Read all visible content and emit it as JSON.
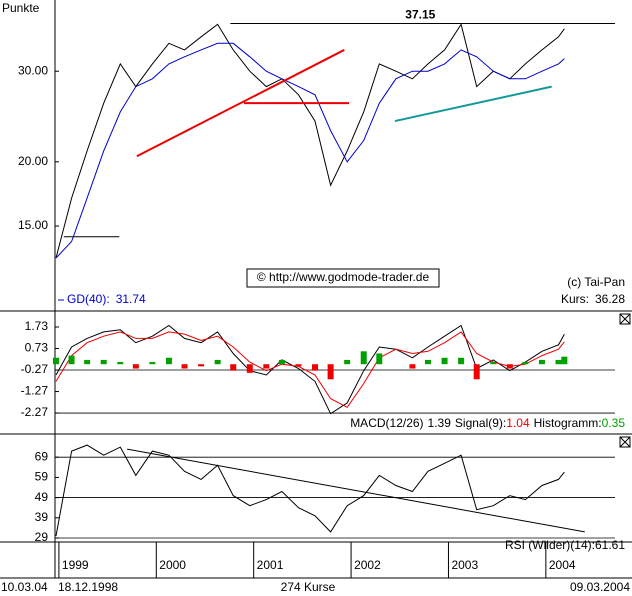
{
  "chart_data": [
    {
      "type": "line",
      "title": "Punkte",
      "log_scale": true,
      "xlim": [
        1998.96,
        2004.71
      ],
      "ylim": [
        10.3,
        40.9
      ],
      "yticks": [
        {
          "value": 15,
          "label": "15.00"
        },
        {
          "value": 20,
          "label": "20.00"
        },
        {
          "value": 30,
          "label": "30.00"
        }
      ],
      "x": [
        1998.97,
        1999.13,
        1999.29,
        1999.46,
        1999.63,
        1999.79,
        1999.96,
        2000.13,
        2000.29,
        2000.46,
        2000.63,
        2000.79,
        2000.96,
        2001.13,
        2001.29,
        2001.46,
        2001.63,
        2001.79,
        2001.96,
        2002.13,
        2002.29,
        2002.46,
        2002.63,
        2002.79,
        2002.96,
        2003.13,
        2003.29,
        2003.46,
        2003.63,
        2003.79,
        2003.96,
        2004.13,
        2004.19
      ],
      "series": [
        {
          "name": "Kurs:",
          "color": "#000000",
          "values": [
            13,
            17,
            21,
            26,
            31,
            28,
            31,
            34,
            33,
            35,
            37,
            33,
            30,
            28,
            29,
            27,
            24,
            18,
            21,
            25,
            31,
            30,
            29,
            31,
            33,
            37,
            28,
            30,
            29,
            31,
            33,
            35,
            36.28
          ]
        },
        {
          "name": "GD(40):",
          "color": "#0000cc",
          "values": [
            13,
            14,
            17,
            21,
            25,
            28,
            29,
            31,
            32,
            33,
            34,
            34,
            32,
            30,
            29,
            28,
            27,
            23,
            20,
            22,
            26,
            29,
            30,
            30,
            31,
            33,
            32,
            30,
            29,
            29,
            30,
            31,
            31.74
          ]
        }
      ],
      "trendlines": [
        {
          "x": [
            1999.8,
            2001.93
          ],
          "y": [
            20.5,
            33
          ],
          "color": "#ee0000"
        },
        {
          "x": [
            2000.9,
            2001.98
          ],
          "y": [
            26,
            26
          ],
          "color": "#ee0000"
        },
        {
          "x": [
            2000.76,
            2004.71
          ],
          "y": [
            37.15,
            37.15
          ],
          "color": "#000000"
        },
        {
          "x": [
            2002.45,
            2004.06
          ],
          "y": [
            24,
            28
          ],
          "color": "#119999"
        },
        {
          "x": [
            1999.05,
            1999.62
          ],
          "y": [
            14.3,
            14.3
          ],
          "color": "#000000"
        }
      ],
      "annotations": [
        "(c) Tai-Pan",
        "© http://www.godmode-trader.de"
      ]
    },
    {
      "type": "line",
      "xlim": [
        1998.96,
        2004.71
      ],
      "ylim": [
        -3.15,
        2.38
      ],
      "yticks": [
        1.73,
        0.73,
        -0.27,
        -1.27,
        -2.27
      ],
      "hlines": [
        -0.27,
        -2.27
      ],
      "x": [
        1998.97,
        1999.13,
        1999.29,
        1999.46,
        1999.63,
        1999.79,
        1999.96,
        2000.13,
        2000.29,
        2000.46,
        2000.63,
        2000.79,
        2000.96,
        2001.13,
        2001.29,
        2001.46,
        2001.63,
        2001.79,
        2001.96,
        2002.13,
        2002.29,
        2002.46,
        2002.63,
        2002.79,
        2002.96,
        2003.13,
        2003.29,
        2003.46,
        2003.63,
        2003.79,
        2003.96,
        2004.13,
        2004.19
      ],
      "series": [
        {
          "name": "MACD(12/26)",
          "color": "#000000",
          "values": [
            -0.5,
            0.8,
            1.2,
            1.5,
            1.6,
            1.0,
            1.3,
            1.8,
            1.2,
            1.0,
            1.5,
            0.5,
            -0.3,
            -0.5,
            0.2,
            -0.2,
            -0.8,
            -2.3,
            -1.8,
            -0.3,
            0.8,
            0.7,
            0.3,
            0.8,
            1.3,
            1.8,
            -0.2,
            0.2,
            -0.3,
            0.1,
            0.6,
            0.9,
            1.39
          ]
        },
        {
          "name": "Signal(9):",
          "color": "#ee0000",
          "values": [
            -0.8,
            0.4,
            1.0,
            1.3,
            1.5,
            1.2,
            1.2,
            1.5,
            1.4,
            1.1,
            1.3,
            0.8,
            0.1,
            -0.3,
            0.0,
            -0.1,
            -0.5,
            -1.6,
            -2.0,
            -0.9,
            0.3,
            0.7,
            0.5,
            0.6,
            1.0,
            1.5,
            0.5,
            0.1,
            -0.1,
            0.0,
            0.4,
            0.7,
            1.04
          ]
        },
        {
          "name": "Histogramm:",
          "type": "bar",
          "color": "#00a000",
          "color_down": "#ee0000",
          "values": [
            0.3,
            0.4,
            0.2,
            0.2,
            0.1,
            -0.2,
            0.1,
            0.3,
            -0.2,
            -0.1,
            0.2,
            -0.3,
            -0.4,
            -0.2,
            0.2,
            -0.1,
            -0.3,
            -0.7,
            0.2,
            0.6,
            0.5,
            0.0,
            -0.2,
            0.2,
            0.3,
            0.3,
            -0.7,
            0.1,
            -0.2,
            0.1,
            0.2,
            0.2,
            0.35
          ]
        }
      ]
    },
    {
      "type": "line",
      "xlim": [
        1998.96,
        2004.71
      ],
      "ylim": [
        27.5,
        79.5
      ],
      "yticks": [
        69,
        59,
        49,
        39,
        29
      ],
      "hlines": [
        69,
        49,
        29
      ],
      "xticks": [
        1999,
        2000,
        2001,
        2002,
        2003,
        2004
      ],
      "x": [
        1998.97,
        1999.13,
        1999.29,
        1999.46,
        1999.63,
        1999.79,
        1999.96,
        2000.13,
        2000.29,
        2000.46,
        2000.63,
        2000.79,
        2000.96,
        2001.13,
        2001.29,
        2001.46,
        2001.63,
        2001.79,
        2001.96,
        2002.13,
        2002.29,
        2002.46,
        2002.63,
        2002.79,
        2002.96,
        2003.13,
        2003.29,
        2003.46,
        2003.63,
        2003.79,
        2003.96,
        2004.13,
        2004.19
      ],
      "series": [
        {
          "name": "RSI (Wilder)(14):",
          "color": "#000000",
          "values": [
            30,
            72,
            75,
            70,
            74,
            60,
            72,
            70,
            62,
            58,
            65,
            50,
            45,
            48,
            52,
            44,
            40,
            32,
            45,
            50,
            60,
            55,
            52,
            62,
            66,
            70,
            43,
            45,
            50,
            48,
            55,
            58,
            61.61
          ]
        }
      ],
      "trendlines": [
        {
          "x": [
            1999.7,
            2004.4
          ],
          "y": [
            73,
            32
          ],
          "color": "#000000"
        }
      ]
    }
  ],
  "footer": {
    "date": "10.03.04",
    "start": "18.12.1998",
    "count": "274 Kurse",
    "end": "09.03.2004"
  }
}
